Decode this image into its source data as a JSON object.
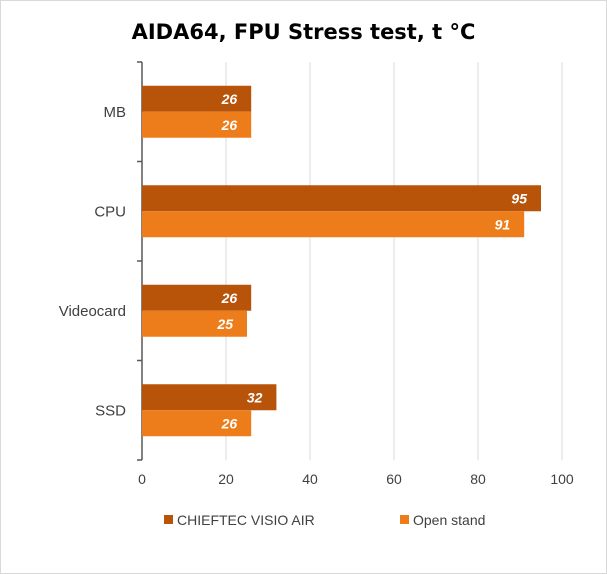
{
  "chart_data": {
    "type": "bar",
    "orientation": "horizontal",
    "title": "AIDA64, FPU Stress test, t °C",
    "categories": [
      "MB",
      "CPU",
      "Videocard",
      "SSD"
    ],
    "series": [
      {
        "name": "CHIEFTEC VISIO AIR",
        "values": [
          26,
          95,
          26,
          32
        ],
        "color": "#b8530a"
      },
      {
        "name": "Open stand",
        "values": [
          26,
          91,
          25,
          26
        ],
        "color": "#ed7d1a"
      }
    ],
    "xlim": [
      0,
      100
    ],
    "xticks": [
      0,
      20,
      40,
      60,
      80,
      100
    ],
    "grid": true,
    "legend_position": "bottom",
    "data_labels": true
  }
}
